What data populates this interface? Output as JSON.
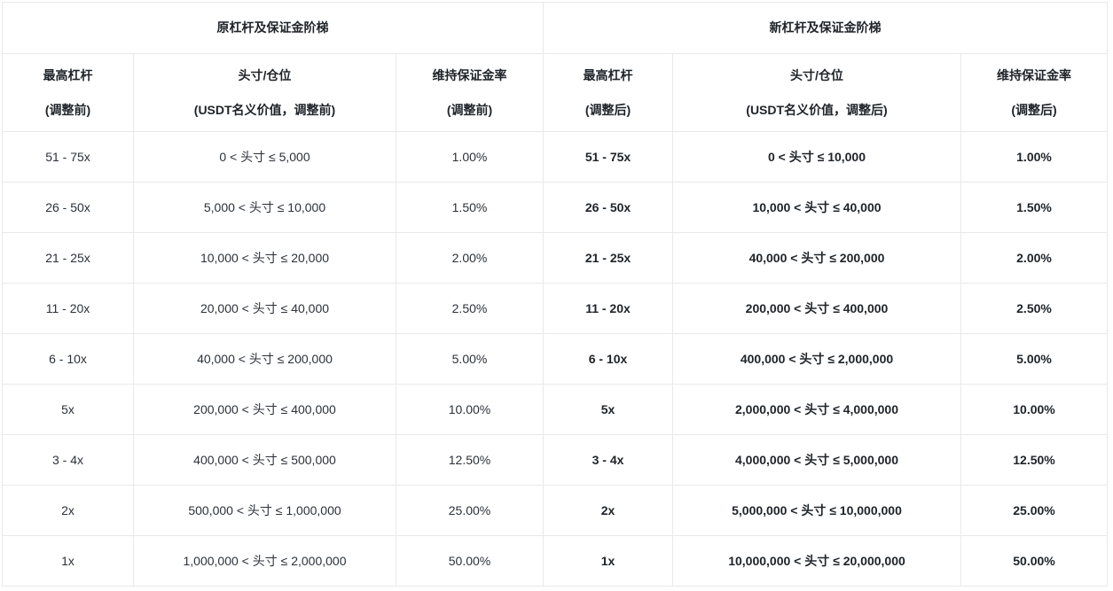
{
  "page": {
    "background": "#ffffff",
    "border_color": "#e9e9e9",
    "text_color": "#1e2329"
  },
  "table": {
    "sections": [
      {
        "title": "原杠杆及保证金阶梯",
        "columns": [
          {
            "line1": "最高杠杆",
            "line2": "(调整前)"
          },
          {
            "line1": "头寸/仓位",
            "line2": "(USDT名义价值，调整前)"
          },
          {
            "line1": "维持保证金率",
            "line2": "(调整前)"
          }
        ]
      },
      {
        "title": "新杠杆及保证金阶梯",
        "columns": [
          {
            "line1": "最高杠杆",
            "line2": "(调整后)"
          },
          {
            "line1": "头寸/仓位",
            "line2": "(USDT名义价值，调整后)"
          },
          {
            "line1": "维持保证金率",
            "line2": "(调整后)"
          }
        ]
      }
    ],
    "rows": [
      {
        "old": [
          "51 - 75x",
          "0 < 头寸 ≤ 5,000",
          "1.00%"
        ],
        "new": [
          "51 - 75x",
          "0 < 头寸 ≤ 10,000",
          "1.00%"
        ]
      },
      {
        "old": [
          "26 - 50x",
          "5,000 < 头寸 ≤ 10,000",
          "1.50%"
        ],
        "new": [
          "26 - 50x",
          "10,000 < 头寸 ≤ 40,000",
          "1.50%"
        ]
      },
      {
        "old": [
          "21 - 25x",
          "10,000 < 头寸 ≤ 20,000",
          "2.00%"
        ],
        "new": [
          "21 - 25x",
          "40,000 < 头寸 ≤ 200,000",
          "2.00%"
        ]
      },
      {
        "old": [
          "11 - 20x",
          "20,000 < 头寸 ≤ 40,000",
          "2.50%"
        ],
        "new": [
          "11 - 20x",
          "200,000 < 头寸 ≤ 400,000",
          "2.50%"
        ]
      },
      {
        "old": [
          "6 - 10x",
          "40,000 < 头寸 ≤ 200,000",
          "5.00%"
        ],
        "new": [
          "6 - 10x",
          "400,000 < 头寸 ≤ 2,000,000",
          "5.00%"
        ]
      },
      {
        "old": [
          "5x",
          "200,000 < 头寸 ≤ 400,000",
          "10.00%"
        ],
        "new": [
          "5x",
          "2,000,000 < 头寸 ≤ 4,000,000",
          "10.00%"
        ]
      },
      {
        "old": [
          "3 - 4x",
          "400,000 < 头寸 ≤ 500,000",
          "12.50%"
        ],
        "new": [
          "3 - 4x",
          "4,000,000 < 头寸 ≤ 5,000,000",
          "12.50%"
        ]
      },
      {
        "old": [
          "2x",
          "500,000 < 头寸 ≤ 1,000,000",
          "25.00%"
        ],
        "new": [
          "2x",
          "5,000,000 < 头寸 ≤ 10,000,000",
          "25.00%"
        ]
      },
      {
        "old": [
          "1x",
          "1,000,000 < 头寸 ≤ 2,000,000",
          "50.00%"
        ],
        "new": [
          "1x",
          "10,000,000 < 头寸 ≤ 20,000,000",
          "50.00%"
        ]
      }
    ]
  }
}
